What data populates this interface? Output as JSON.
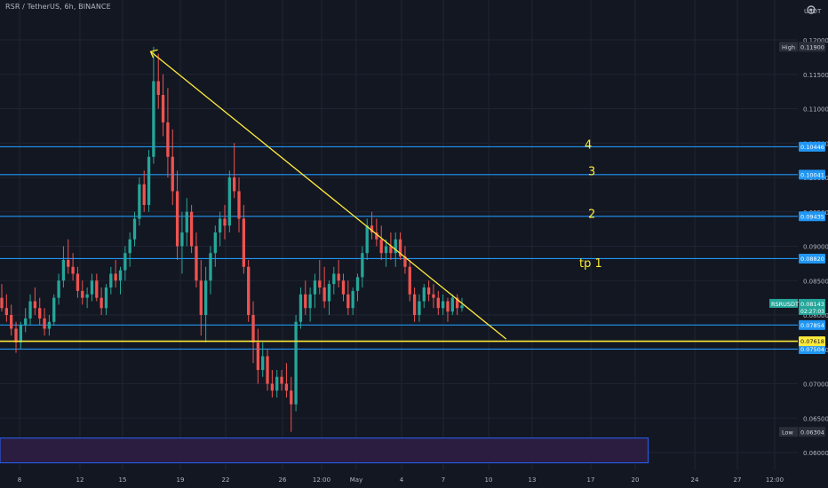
{
  "symbol_title": "RSR / TetherUS, 6h, BINANCE",
  "currency_label": "USDT",
  "icons": {
    "settings": "gear-icon"
  },
  "colors": {
    "background": "#131722",
    "grid": "#1f2433",
    "up": "#26a69a",
    "down": "#ef5350",
    "level_line": "#2196f3",
    "trend_line": "#ffeb3b",
    "box_fill": "#2a1d3f",
    "box_border": "#2962ff",
    "text": "#b2b5be",
    "label_text": "#ffeb3b"
  },
  "chart_data": {
    "type": "candlestick",
    "title": "RSR / TetherUS, 6h, BINANCE",
    "y_axis": {
      "range": [
        0.0585,
        0.1238
      ],
      "ticks": [
        "0.12000",
        "0.11500",
        "0.11000",
        "0.10500",
        "0.10000",
        "0.09500",
        "0.09000",
        "0.08500",
        "0.08000",
        "0.07500",
        "0.07000",
        "0.06500",
        "0.06000"
      ],
      "tick_values": [
        0.12,
        0.115,
        0.11,
        0.105,
        0.1,
        0.095,
        0.09,
        0.085,
        0.08,
        0.075,
        0.07,
        0.065,
        0.06
      ]
    },
    "x_axis": {
      "ticks": [
        "8",
        "12",
        "15",
        "19",
        "22",
        "26",
        "12:00",
        "May",
        "4",
        "7",
        "10",
        "13",
        "17",
        "20",
        "24",
        "27",
        "12:00"
      ]
    },
    "horizontal_levels": [
      {
        "value": 0.10446,
        "label": "0.10446",
        "color": "#2196f3"
      },
      {
        "value": 0.10041,
        "label": "0.10041",
        "color": "#2196f3"
      },
      {
        "value": 0.09435,
        "label": "0.09435",
        "color": "#2196f3"
      },
      {
        "value": 0.0882,
        "label": "0.08820",
        "color": "#2196f3"
      },
      {
        "value": 0.07854,
        "label": "0.07854",
        "color": "#2196f3"
      },
      {
        "value": 0.07504,
        "label": "0.07504",
        "color": "#2196f3"
      },
      {
        "value": 0.07618,
        "label": "0.07618",
        "color": "#ffeb3b"
      }
    ],
    "price_badges": [
      {
        "text": "High",
        "value": "0.11900",
        "y": 0.119
      },
      {
        "text": "Low",
        "value": "0.06304",
        "y": 0.063
      },
      {
        "text": "RSRUSDT",
        "value": "0.08143",
        "countdown": "02:27:03",
        "y": 0.08143
      }
    ],
    "annotations": [
      {
        "text": "4",
        "y": 0.1042
      },
      {
        "text": "3",
        "y": 0.1003
      },
      {
        "text": "2",
        "y": 0.0941
      },
      {
        "text": "tp  1",
        "y": 0.087
      }
    ],
    "trend_line": {
      "x0": 0.1888,
      "y0": 0.1183,
      "x1": 0.6345,
      "y1": 0.0765
    },
    "support_line_value": 0.07618,
    "range_box": {
      "x0": 0.0,
      "x1": 0.8125,
      "y0": 0.0585,
      "y1": 0.0621
    },
    "candles_ohlc": [
      [
        0.0825,
        0.0845,
        0.0805,
        0.081
      ],
      [
        0.081,
        0.083,
        0.079,
        0.08
      ],
      [
        0.08,
        0.0815,
        0.077,
        0.078
      ],
      [
        0.078,
        0.079,
        0.0745,
        0.076
      ],
      [
        0.076,
        0.079,
        0.075,
        0.0785
      ],
      [
        0.0785,
        0.081,
        0.0775,
        0.0795
      ],
      [
        0.0795,
        0.083,
        0.0785,
        0.082
      ],
      [
        0.082,
        0.084,
        0.08,
        0.081
      ],
      [
        0.081,
        0.0825,
        0.0785,
        0.0795
      ],
      [
        0.0795,
        0.081,
        0.077,
        0.078
      ],
      [
        0.078,
        0.08,
        0.077,
        0.079
      ],
      [
        0.079,
        0.083,
        0.0785,
        0.0825
      ],
      [
        0.0825,
        0.086,
        0.0815,
        0.085
      ],
      [
        0.085,
        0.09,
        0.084,
        0.088
      ],
      [
        0.088,
        0.091,
        0.086,
        0.087
      ],
      [
        0.087,
        0.089,
        0.085,
        0.086
      ],
      [
        0.086,
        0.087,
        0.0825,
        0.0835
      ],
      [
        0.0835,
        0.085,
        0.0815,
        0.0825
      ],
      [
        0.0825,
        0.084,
        0.081,
        0.083
      ],
      [
        0.083,
        0.086,
        0.082,
        0.085
      ],
      [
        0.085,
        0.086,
        0.082,
        0.0825
      ],
      [
        0.0825,
        0.084,
        0.08,
        0.081
      ],
      [
        0.081,
        0.0845,
        0.08,
        0.084
      ],
      [
        0.084,
        0.087,
        0.083,
        0.086
      ],
      [
        0.086,
        0.088,
        0.084,
        0.085
      ],
      [
        0.085,
        0.087,
        0.083,
        0.0865
      ],
      [
        0.0865,
        0.09,
        0.085,
        0.089
      ],
      [
        0.089,
        0.092,
        0.087,
        0.091
      ],
      [
        0.091,
        0.095,
        0.09,
        0.094
      ],
      [
        0.094,
        0.1,
        0.093,
        0.099
      ],
      [
        0.099,
        0.101,
        0.095,
        0.096
      ],
      [
        0.096,
        0.104,
        0.095,
        0.103
      ],
      [
        0.103,
        0.119,
        0.102,
        0.114
      ],
      [
        0.114,
        0.118,
        0.11,
        0.112
      ],
      [
        0.112,
        0.115,
        0.106,
        0.108
      ],
      [
        0.108,
        0.113,
        0.1,
        0.103
      ],
      [
        0.103,
        0.107,
        0.096,
        0.098
      ],
      [
        0.098,
        0.101,
        0.088,
        0.09
      ],
      [
        0.09,
        0.095,
        0.086,
        0.092
      ],
      [
        0.092,
        0.097,
        0.09,
        0.095
      ],
      [
        0.095,
        0.096,
        0.089,
        0.09
      ],
      [
        0.09,
        0.092,
        0.084,
        0.085
      ],
      [
        0.085,
        0.088,
        0.077,
        0.08
      ],
      [
        0.08,
        0.087,
        0.076,
        0.085
      ],
      [
        0.085,
        0.09,
        0.083,
        0.089
      ],
      [
        0.089,
        0.093,
        0.087,
        0.092
      ],
      [
        0.092,
        0.095,
        0.09,
        0.094
      ],
      [
        0.094,
        0.096,
        0.091,
        0.093
      ],
      [
        0.093,
        0.101,
        0.092,
        0.1
      ],
      [
        0.1,
        0.105,
        0.097,
        0.098
      ],
      [
        0.098,
        0.1,
        0.092,
        0.094
      ],
      [
        0.094,
        0.096,
        0.086,
        0.087
      ],
      [
        0.087,
        0.088,
        0.079,
        0.08
      ],
      [
        0.08,
        0.082,
        0.073,
        0.076
      ],
      [
        0.076,
        0.078,
        0.07,
        0.072
      ],
      [
        0.072,
        0.076,
        0.071,
        0.074
      ],
      [
        0.074,
        0.075,
        0.069,
        0.07
      ],
      [
        0.07,
        0.072,
        0.068,
        0.069
      ],
      [
        0.069,
        0.072,
        0.068,
        0.071
      ],
      [
        0.071,
        0.072,
        0.069,
        0.07
      ],
      [
        0.07,
        0.073,
        0.068,
        0.069
      ],
      [
        0.069,
        0.071,
        0.063,
        0.067
      ],
      [
        0.067,
        0.08,
        0.066,
        0.079
      ],
      [
        0.079,
        0.084,
        0.078,
        0.083
      ],
      [
        0.083,
        0.085,
        0.08,
        0.081
      ],
      [
        0.081,
        0.084,
        0.079,
        0.083
      ],
      [
        0.083,
        0.086,
        0.081,
        0.085
      ],
      [
        0.085,
        0.088,
        0.083,
        0.084
      ],
      [
        0.084,
        0.087,
        0.081,
        0.082
      ],
      [
        0.082,
        0.085,
        0.08,
        0.0845
      ],
      [
        0.0845,
        0.087,
        0.083,
        0.086
      ],
      [
        0.086,
        0.088,
        0.084,
        0.085
      ],
      [
        0.085,
        0.086,
        0.082,
        0.083
      ],
      [
        0.083,
        0.085,
        0.08,
        0.081
      ],
      [
        0.081,
        0.084,
        0.08,
        0.0835
      ],
      [
        0.0835,
        0.086,
        0.082,
        0.0855
      ],
      [
        0.0855,
        0.09,
        0.084,
        0.089
      ],
      [
        0.089,
        0.094,
        0.088,
        0.093
      ],
      [
        0.093,
        0.095,
        0.091,
        0.092
      ],
      [
        0.092,
        0.094,
        0.09,
        0.091
      ],
      [
        0.091,
        0.093,
        0.088,
        0.089
      ],
      [
        0.089,
        0.091,
        0.087,
        0.09
      ],
      [
        0.09,
        0.092,
        0.088,
        0.089
      ],
      [
        0.089,
        0.092,
        0.087,
        0.091
      ],
      [
        0.091,
        0.092,
        0.088,
        0.0885
      ],
      [
        0.0885,
        0.09,
        0.086,
        0.087
      ],
      [
        0.087,
        0.088,
        0.082,
        0.083
      ],
      [
        0.083,
        0.084,
        0.079,
        0.08
      ],
      [
        0.08,
        0.083,
        0.079,
        0.082
      ],
      [
        0.082,
        0.0845,
        0.081,
        0.084
      ],
      [
        0.084,
        0.085,
        0.082,
        0.083
      ],
      [
        0.083,
        0.0845,
        0.081,
        0.0825
      ],
      [
        0.0825,
        0.0835,
        0.08,
        0.081
      ],
      [
        0.081,
        0.083,
        0.08,
        0.082
      ],
      [
        0.082,
        0.0825,
        0.079,
        0.0805
      ],
      [
        0.0805,
        0.083,
        0.08,
        0.0825
      ],
      [
        0.0825,
        0.083,
        0.08,
        0.081
      ],
      [
        0.081,
        0.0825,
        0.0805,
        0.0814
      ]
    ]
  }
}
